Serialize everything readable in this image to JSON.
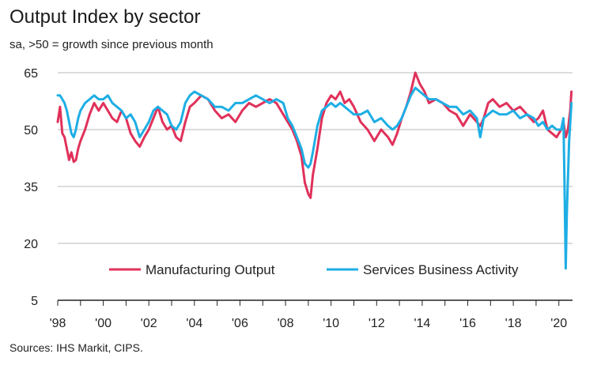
{
  "chart_data": {
    "type": "line",
    "title": "Output Index by sector",
    "subtitle": "sa, >50 = growth since previous month",
    "source": "Sources: IHS Markit, CIPS.",
    "xlabel": "",
    "ylabel": "",
    "xlim": [
      1998,
      2020.6
    ],
    "ylim": [
      5,
      65
    ],
    "yticks": [
      65,
      50,
      35,
      20,
      5
    ],
    "xtick_labels": [
      "'98",
      "'00",
      "'02",
      "'04",
      "'06",
      "'08",
      "'10",
      "'12",
      "'14",
      "'16",
      "'18",
      "'20"
    ],
    "xtick_years": [
      1998,
      2000,
      2002,
      2004,
      2006,
      2008,
      2010,
      2012,
      2014,
      2016,
      2018,
      2020
    ],
    "grid": "horizontal",
    "legend_position": "bottom-center",
    "series": [
      {
        "name": "Manufacturing Output",
        "color": "#e0315a",
        "x": [
          1998.0,
          1998.1,
          1998.2,
          1998.3,
          1998.4,
          1998.5,
          1998.6,
          1998.7,
          1998.8,
          1998.9,
          1999.0,
          1999.2,
          1999.4,
          1999.6,
          1999.8,
          2000.0,
          2000.2,
          2000.4,
          2000.6,
          2000.8,
          2001.0,
          2001.2,
          2001.4,
          2001.6,
          2001.8,
          2002.0,
          2002.2,
          2002.4,
          2002.6,
          2002.8,
          2003.0,
          2003.2,
          2003.4,
          2003.6,
          2003.8,
          2004.0,
          2004.3,
          2004.6,
          2004.9,
          2005.2,
          2005.5,
          2005.8,
          2006.1,
          2006.4,
          2006.7,
          2007.0,
          2007.3,
          2007.6,
          2007.9,
          2008.1,
          2008.3,
          2008.5,
          2008.7,
          2008.85,
          2009.0,
          2009.1,
          2009.2,
          2009.4,
          2009.6,
          2009.8,
          2010.0,
          2010.2,
          2010.4,
          2010.6,
          2010.8,
          2011.0,
          2011.3,
          2011.6,
          2011.9,
          2012.2,
          2012.5,
          2012.7,
          2012.9,
          2013.1,
          2013.3,
          2013.5,
          2013.7,
          2013.9,
          2014.1,
          2014.3,
          2014.6,
          2014.9,
          2015.2,
          2015.5,
          2015.8,
          2016.1,
          2016.4,
          2016.55,
          2016.7,
          2016.9,
          2017.1,
          2017.4,
          2017.7,
          2018.0,
          2018.3,
          2018.6,
          2018.9,
          2019.1,
          2019.3,
          2019.5,
          2019.7,
          2019.9,
          2020.1,
          2020.2,
          2020.3,
          2020.4,
          2020.5,
          2020.55
        ],
        "values": [
          52,
          56,
          49,
          48,
          45,
          42,
          44,
          41.5,
          42,
          45,
          47,
          50,
          54,
          57,
          55,
          57,
          55,
          53,
          52,
          55,
          53,
          49,
          47,
          45.5,
          48,
          50,
          53,
          56,
          52,
          50,
          51,
          48,
          47,
          52,
          56,
          57,
          59,
          58,
          55,
          53,
          54,
          52,
          55,
          57,
          56,
          57,
          58,
          57,
          54,
          52,
          50,
          47,
          43,
          36,
          33,
          32,
          38,
          45,
          53,
          57,
          59,
          58,
          60,
          57,
          58,
          56,
          52,
          50,
          47,
          50,
          48,
          46,
          49,
          53,
          56,
          60,
          65,
          62,
          60,
          57,
          58,
          57,
          55,
          54,
          51,
          54,
          52,
          51,
          53,
          57,
          58,
          56,
          57,
          55,
          56,
          54,
          52,
          53,
          55,
          50,
          49,
          48,
          50,
          52,
          48,
          50,
          55,
          60
        ]
      },
      {
        "name": "Services Business Activity",
        "color": "#1eaee4",
        "x": [
          1998.0,
          1998.1,
          1998.2,
          1998.3,
          1998.4,
          1998.5,
          1998.6,
          1998.7,
          1998.8,
          1998.9,
          1999.0,
          1999.2,
          1999.4,
          1999.6,
          1999.8,
          2000.0,
          2000.2,
          2000.4,
          2000.6,
          2000.8,
          2001.0,
          2001.2,
          2001.4,
          2001.6,
          2001.8,
          2002.0,
          2002.2,
          2002.4,
          2002.6,
          2002.8,
          2003.0,
          2003.2,
          2003.4,
          2003.6,
          2003.8,
          2004.0,
          2004.3,
          2004.6,
          2004.9,
          2005.2,
          2005.5,
          2005.8,
          2006.1,
          2006.4,
          2006.7,
          2007.0,
          2007.3,
          2007.6,
          2007.9,
          2008.1,
          2008.3,
          2008.5,
          2008.7,
          2008.85,
          2009.0,
          2009.1,
          2009.2,
          2009.4,
          2009.6,
          2009.8,
          2010.0,
          2010.2,
          2010.4,
          2010.6,
          2010.8,
          2011.0,
          2011.3,
          2011.6,
          2011.9,
          2012.2,
          2012.5,
          2012.7,
          2012.9,
          2013.1,
          2013.3,
          2013.5,
          2013.7,
          2013.9,
          2014.1,
          2014.3,
          2014.6,
          2014.9,
          2015.2,
          2015.5,
          2015.8,
          2016.1,
          2016.4,
          2016.55,
          2016.7,
          2016.9,
          2017.1,
          2017.4,
          2017.7,
          2018.0,
          2018.3,
          2018.6,
          2018.9,
          2019.1,
          2019.3,
          2019.5,
          2019.7,
          2019.9,
          2020.1,
          2020.2,
          2020.25,
          2020.3,
          2020.35,
          2020.45,
          2020.55
        ],
        "values": [
          59,
          59,
          58,
          57,
          55,
          52,
          49,
          48,
          50,
          53,
          55,
          57,
          58,
          59,
          58,
          58,
          59,
          57,
          56,
          55,
          53,
          54,
          52,
          48,
          50,
          52,
          55,
          56,
          55,
          54,
          51,
          50,
          52,
          57,
          59,
          60,
          59,
          58,
          56,
          56,
          55,
          57,
          57,
          58,
          59,
          58,
          57,
          58,
          57,
          53,
          51,
          48,
          45,
          41,
          40,
          41,
          44,
          51,
          55,
          56,
          57,
          56,
          57,
          56,
          55,
          54,
          54,
          55,
          52,
          53,
          51,
          50,
          51,
          53,
          56,
          59,
          61,
          60,
          59,
          58,
          58,
          57,
          56,
          56,
          54,
          55,
          53,
          48,
          53,
          54,
          55,
          54,
          54,
          55,
          53,
          54,
          53,
          51,
          52,
          50,
          51,
          50,
          50,
          53,
          35,
          13.4,
          28,
          47,
          57
        ]
      }
    ]
  }
}
